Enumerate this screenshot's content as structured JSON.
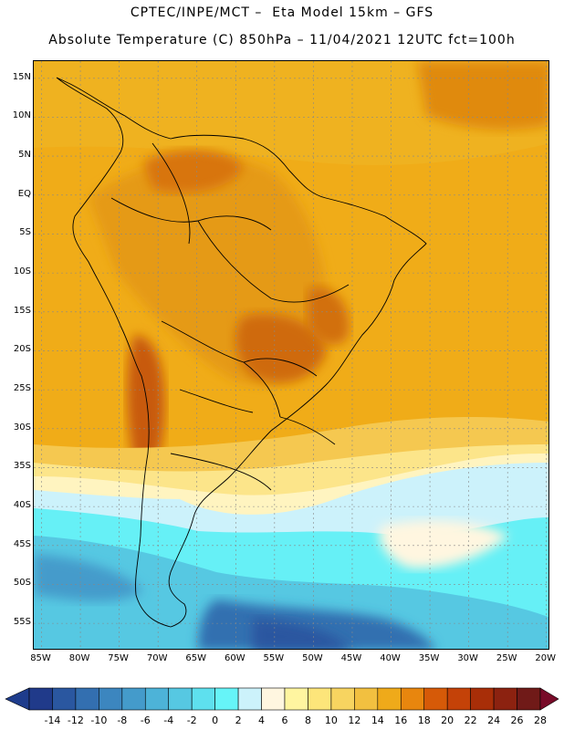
{
  "header": {
    "line1": "CPTEC/INPE/MCT –  Eta Model 15km – GFS",
    "line2": "Absolute Temperature (C) 850hPa – 11/04/2021 12UTC fct=100h"
  },
  "map": {
    "lon_min": -86,
    "lon_max": -19.5,
    "lat_min": -58.5,
    "lat_max": 17.2,
    "lat_ticks": [
      {
        "lat": 15,
        "label": "15N"
      },
      {
        "lat": 10,
        "label": "10N"
      },
      {
        "lat": 5,
        "label": "5N"
      },
      {
        "lat": 0,
        "label": "EQ"
      },
      {
        "lat": -5,
        "label": "5S"
      },
      {
        "lat": -10,
        "label": "10S"
      },
      {
        "lat": -15,
        "label": "15S"
      },
      {
        "lat": -20,
        "label": "20S"
      },
      {
        "lat": -25,
        "label": "25S"
      },
      {
        "lat": -30,
        "label": "30S"
      },
      {
        "lat": -35,
        "label": "35S"
      },
      {
        "lat": -40,
        "label": "40S"
      },
      {
        "lat": -45,
        "label": "45S"
      },
      {
        "lat": -50,
        "label": "50S"
      },
      {
        "lat": -55,
        "label": "55S"
      }
    ],
    "lon_ticks": [
      {
        "lon": -85,
        "label": "85W"
      },
      {
        "lon": -80,
        "label": "80W"
      },
      {
        "lon": -75,
        "label": "75W"
      },
      {
        "lon": -70,
        "label": "70W"
      },
      {
        "lon": -65,
        "label": "65W"
      },
      {
        "lon": -60,
        "label": "60W"
      },
      {
        "lon": -55,
        "label": "55W"
      },
      {
        "lon": -50,
        "label": "50W"
      },
      {
        "lon": -45,
        "label": "45W"
      },
      {
        "lon": -40,
        "label": "40W"
      },
      {
        "lon": -35,
        "label": "35W"
      },
      {
        "lon": -30,
        "label": "30W"
      },
      {
        "lon": -25,
        "label": "25W"
      },
      {
        "lon": -20,
        "label": "20W"
      }
    ]
  },
  "colorbar": {
    "levels": [
      "-14",
      "-12",
      "-10",
      "-8",
      "-6",
      "-4",
      "-2",
      "0",
      "2",
      "4",
      "6",
      "8",
      "10",
      "12",
      "14",
      "16",
      "18",
      "20",
      "22",
      "24",
      "26",
      "28"
    ],
    "colors": [
      "#203a8a",
      "#2a57a0",
      "#336fb0",
      "#3c86bf",
      "#449bcb",
      "#4db3d8",
      "#56c8e2",
      "#5ee0ee",
      "#66f4f8",
      "#ccf2fb",
      "#fff6e0",
      "#fff5a0",
      "#fde57a",
      "#f7d460",
      "#f2c040",
      "#efaa1a",
      "#e8860e",
      "#d65a08",
      "#c44208",
      "#a82e08",
      "#8c2210",
      "#701a18"
    ],
    "under_color": "#1e3c8c",
    "over_color": "#780a28"
  }
}
